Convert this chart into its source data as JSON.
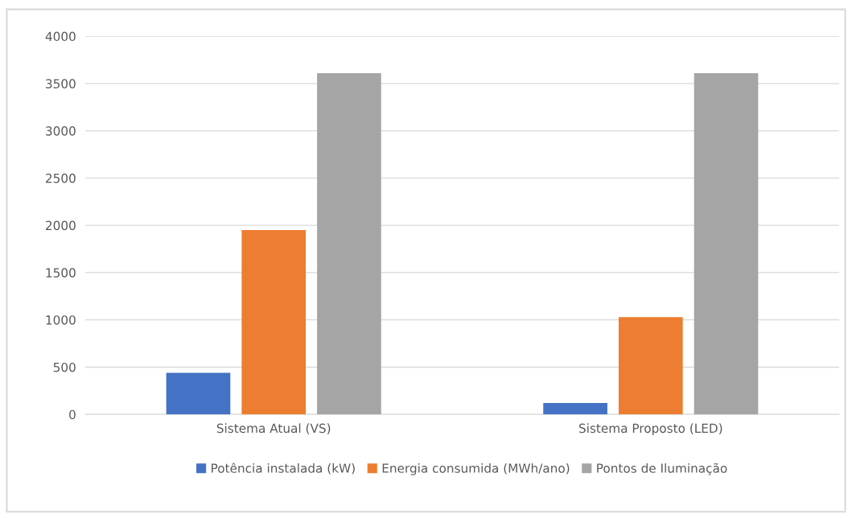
{
  "chart_data": {
    "type": "bar",
    "categories": [
      "Sistema Atual (VS)",
      "Sistema Proposto (LED)"
    ],
    "series": [
      {
        "name": "Potência instalada (kW)",
        "color": "#4472c4",
        "values": [
          440,
          120
        ]
      },
      {
        "name": "Energia consumida (MWh/ano)",
        "color": "#ed7d31",
        "values": [
          1950,
          1030
        ]
      },
      {
        "name": "Pontos de Iluminação",
        "color": "#a5a5a5",
        "values": [
          3610,
          3610
        ]
      }
    ],
    "ylim": [
      0,
      4000
    ],
    "yticks": [
      0,
      500,
      1000,
      1500,
      2000,
      2500,
      3000,
      3500,
      4000
    ],
    "grid": "y",
    "legend": "bottom"
  }
}
